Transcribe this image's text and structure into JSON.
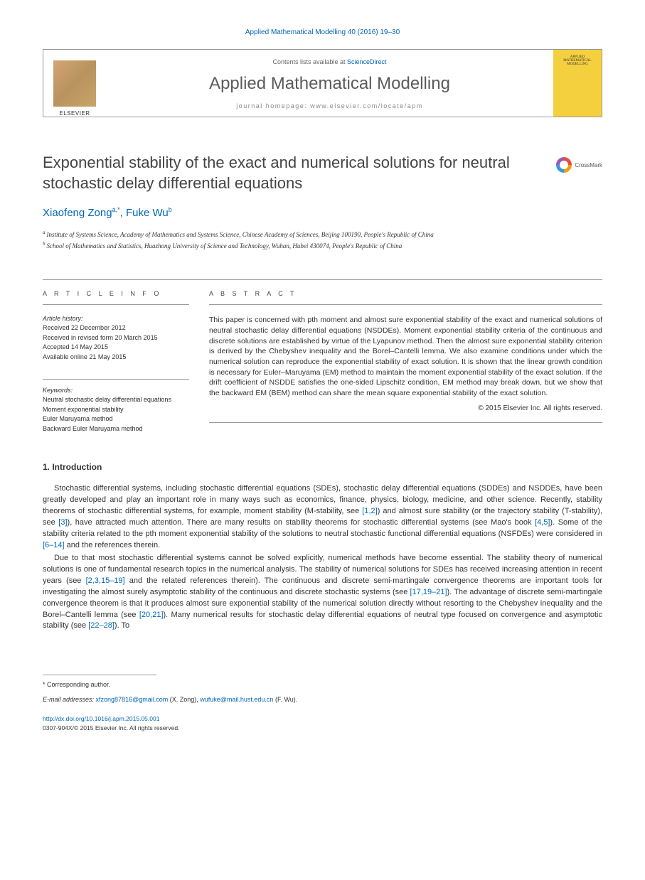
{
  "journal_ref": "Applied Mathematical Modelling 40 (2016) 19–30",
  "header": {
    "contents_prefix": "Contents lists available at ",
    "sciencedirect": "ScienceDirect",
    "journal_title": "Applied Mathematical Modelling",
    "homepage_label": "journal homepage: www.elsevier.com/locate/apm",
    "publisher_logo_alt": "ELSEVIER",
    "cover_text": "APPLIED MATHEMATICAL MODELLING"
  },
  "crossmark_label": "CrossMark",
  "title": "Exponential stability of the exact and numerical solutions for neutral stochastic delay differential equations",
  "authors": {
    "a1_name": "Xiaofeng Zong",
    "a1_sup": "a,*",
    "sep": ", ",
    "a2_name": "Fuke Wu",
    "a2_sup": "b"
  },
  "affiliations": {
    "aff_a": "Institute of Systems Science, Academy of Mathematics and Systems Science, Chinese Academy of Sciences, Beijing 100190, People's Republic of China",
    "aff_b": "School of Mathematics and Statistics, Huazhong University of Science and Technology, Wuhan, Hubei 430074, People's Republic of China"
  },
  "info": {
    "heading": "A R T I C L E   I N F O",
    "history_label": "Article history:",
    "received": "Received 22 December 2012",
    "revised": "Received in revised form 20 March 2015",
    "accepted": "Accepted 14 May 2015",
    "online": "Available online 21 May 2015",
    "kw_label": "Keywords:",
    "kw1": "Neutral stochastic delay differential equations",
    "kw2": "Moment exponential stability",
    "kw3": "Euler Maruyama method",
    "kw4": "Backward Euler Maruyama method"
  },
  "abstract": {
    "heading": "A B S T R A C T",
    "text": "This paper is concerned with pth moment and almost sure exponential stability of the exact and numerical solutions of neutral stochastic delay differential equations (NSDDEs). Moment exponential stability criteria of the continuous and discrete solutions are established by virtue of the Lyapunov method. Then the almost sure exponential stability criterion is derived by the Chebyshev inequality and the Borel–Cantelli lemma. We also examine conditions under which the numerical solution can reproduce the exponential stability of exact solution. It is shown that the linear growth condition is necessary for Euler–Maruyama (EM) method to maintain the moment exponential stability of the exact solution. If the drift coefficient of NSDDE satisfies the one-sided Lipschitz condition, EM method may break down, but we show that the backward EM (BEM) method can share the mean square exponential stability of the exact solution.",
    "copyright": "© 2015 Elsevier Inc. All rights reserved."
  },
  "section1": {
    "heading": "1. Introduction",
    "p1_a": "Stochastic differential systems, including stochastic differential equations (SDEs), stochastic delay differential equations (SDDEs) and NSDDEs, have been greatly developed and play an important role in many ways such as economics, finance, physics, biology, medicine, and other science. Recently, stability theorems of stochastic differential systems, for example, moment stability (M-stability, see ",
    "p1_r1": "[1,2]",
    "p1_b": ") and almost sure stability (or the trajectory stability (T-stability), see ",
    "p1_r2": "[3]",
    "p1_c": "), have attracted much attention. There are many results on stability theorems for stochastic differential systems (see Mao's book ",
    "p1_r3": "[4,5]",
    "p1_d": "). Some of the stability criteria related to the pth moment exponential stability of the solutions to neutral stochastic functional differential equations (NSFDEs) were considered in ",
    "p1_r4": "[6–14]",
    "p1_e": " and the references therein.",
    "p2_a": "Due to that most stochastic differential systems cannot be solved explicitly, numerical methods have become essential. The stability theory of numerical solutions is one of fundamental research topics in the numerical analysis. The stability of numerical solutions for SDEs has received increasing attention in recent years (see ",
    "p2_r1": "[2,3,15–19]",
    "p2_b": " and the related references therein). The continuous and discrete semi-martingale convergence theorems are important tools for investigating the almost surely asymptotic stability of the continuous and discrete stochastic systems (see ",
    "p2_r2": "[17,19–21]",
    "p2_c": "). The advantage of discrete semi-martingale convergence theorem is that it produces almost sure exponential stability of the numerical solution directly without resorting to the Chebyshev inequality and the Borel–Cantelli lemma (see ",
    "p2_r3": "[20,21]",
    "p2_d": "). Many numerical results for stochastic delay differential equations of neutral type focused on convergence and asymptotic stability (see ",
    "p2_r4": "[22–28]",
    "p2_e": "). To"
  },
  "footer": {
    "corr": "* Corresponding author.",
    "email_label": "E-mail addresses: ",
    "email1": "xfzong87816@gmail.com",
    "email1_who": " (X. Zong), ",
    "email2": "wufuke@mail.hust.edu.cn",
    "email2_who": " (F. Wu).",
    "doi": "http://dx.doi.org/10.1016/j.apm.2015.05.001",
    "issn_line": "0307-904X/© 2015 Elsevier Inc. All rights reserved."
  },
  "colors": {
    "link": "#0066b3",
    "cover_bg": "#f4d03f",
    "text": "#333333",
    "rule": "#999999"
  }
}
